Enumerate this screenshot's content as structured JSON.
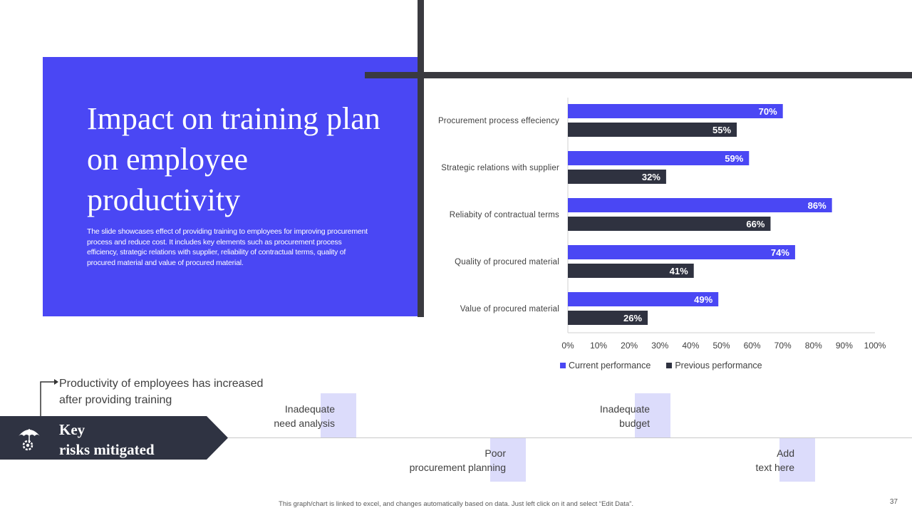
{
  "slide": {
    "title": "Impact on training plan on employee productivity",
    "description": "The slide showcases effect of providing training to employees for improving procurement process and reduce cost. It includes key elements such as procurement process efficiency, strategic relations with supplier, reliability of contractual terms, quality of procured material and value of procured material.",
    "note": "Productivity of employees has increased after providing training",
    "key_line1": "Key",
    "key_line2": "risks mitigated",
    "footer": "This graph/chart is linked to excel, and changes automatically based on data. Just left click on it and select “Edit Data”.",
    "page_number": "37"
  },
  "risks": [
    {
      "line1": "Inadequate",
      "line2": "need analysis"
    },
    {
      "line1": "Poor",
      "line2": "procurement  planning"
    },
    {
      "line1": "Inadequate",
      "line2": "budget"
    },
    {
      "line1": "Add",
      "line2": "text here"
    }
  ],
  "colors": {
    "accent": "#4a47f4",
    "dark": "#2f3240",
    "banner": "#2f3342",
    "lavender": "#dcdcfb"
  },
  "icons": {
    "banner_icon": "umbrella-gear-icon",
    "note_connector": "arrow-right-icon"
  },
  "chart_data": {
    "type": "bar",
    "orientation": "horizontal",
    "categories": [
      "Procurement process effeciency",
      "Strategic relations with supplier",
      "Reliabity of contractual terms",
      "Quality of procured material",
      "Value of procured material"
    ],
    "series": [
      {
        "name": "Current performance",
        "color": "#4a47f4",
        "values": [
          70,
          59,
          86,
          74,
          49
        ]
      },
      {
        "name": "Previous performance",
        "color": "#2f3240",
        "values": [
          55,
          32,
          66,
          41,
          26
        ]
      }
    ],
    "value_suffix": "%",
    "xlim": [
      0,
      100
    ],
    "x_ticks": [
      "0%",
      "10%",
      "20%",
      "30%",
      "40%",
      "50%",
      "60%",
      "70%",
      "80%",
      "90%",
      "100%"
    ],
    "grid": false,
    "legend": "bottom"
  }
}
